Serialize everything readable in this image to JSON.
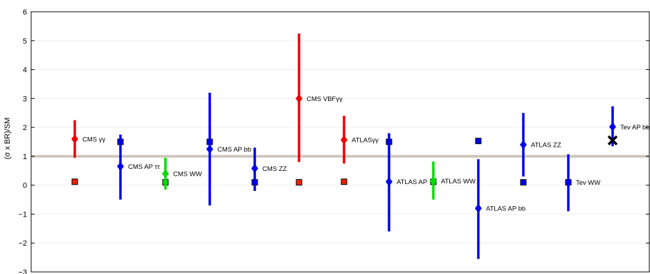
{
  "chart_data": {
    "type": "scatter",
    "title": "",
    "xlabel": "",
    "ylabel": "(σ x BR)/SM",
    "ylim": [
      -3,
      6
    ],
    "yticks": [
      "6",
      "5",
      "4",
      "3",
      "2",
      "1",
      "0",
      "−1",
      "−2",
      "−3"
    ],
    "reference_line": {
      "y": 1,
      "color": "#cfc8bf"
    },
    "grid": "horizontal",
    "points": [
      {
        "label": "CMS γγ",
        "x": 1,
        "y": 1.6,
        "low": 0.95,
        "high": 2.25,
        "color": "#ee0000",
        "marker": "diamond"
      },
      {
        "label": "CMS AP ττ",
        "x": 2,
        "y": 0.65,
        "low": -0.5,
        "high": 1.75,
        "color": "#0000ee",
        "marker": "diamond"
      },
      {
        "label": "CMS WW",
        "x": 3,
        "y": 0.4,
        "low": -0.15,
        "high": 0.95,
        "color": "#00dd00",
        "marker": "diamond"
      },
      {
        "label": "CMS AP bb",
        "x": 4,
        "y": 1.25,
        "low": -0.7,
        "high": 3.2,
        "color": "#0000ee",
        "marker": "diamond"
      },
      {
        "label": "CMS ZZ",
        "x": 5,
        "y": 0.58,
        "low": -0.2,
        "high": 1.3,
        "color": "#0000ee",
        "marker": "diamond"
      },
      {
        "label": "CMS VBFγγ",
        "x": 6,
        "y": 3.0,
        "low": 0.8,
        "high": 5.25,
        "color": "#ee0000",
        "marker": "diamond"
      },
      {
        "label": "ATLASγγ",
        "x": 7,
        "y": 1.57,
        "low": 0.75,
        "high": 2.4,
        "color": "#ee0000",
        "marker": "diamond"
      },
      {
        "label": "ATLAS AP",
        "x": 8,
        "y": 0.12,
        "low": -1.6,
        "high": 1.8,
        "color": "#0000ee",
        "marker": "diamond"
      },
      {
        "label": "ATLAS WW",
        "x": 9,
        "y": 0.15,
        "low": -0.5,
        "high": 0.82,
        "color": "#00dd00",
        "marker": "diamond"
      },
      {
        "label": "ATLAS AP bb",
        "x": 10,
        "y": -0.8,
        "low": -2.55,
        "high": 0.9,
        "color": "#0000ee",
        "marker": "diamond"
      },
      {
        "label": "ATLAS ZZ",
        "x": 11,
        "y": 1.4,
        "low": 0.3,
        "high": 2.5,
        "color": "#0000ee",
        "marker": "diamond"
      },
      {
        "label": "Tev WW",
        "x": 12,
        "y": 0.1,
        "low": -0.9,
        "high": 1.07,
        "color": "#0000ee",
        "marker": "diamond"
      },
      {
        "label": "Tev AP bb",
        "x": 13,
        "y": 2.02,
        "low": 1.35,
        "high": 2.73,
        "color": "#0000ee",
        "marker": "diamond"
      }
    ],
    "squares": [
      {
        "x": 1,
        "y": 0.12,
        "color": "#ee2200"
      },
      {
        "x": 2,
        "y": 1.5,
        "color": "#0000ee"
      },
      {
        "x": 3,
        "y": 0.1,
        "color": "#00dd00"
      },
      {
        "x": 4,
        "y": 1.5,
        "color": "#0000ee"
      },
      {
        "x": 5,
        "y": 0.1,
        "color": "#0000ee"
      },
      {
        "x": 6,
        "y": 0.1,
        "color": "#ee2200"
      },
      {
        "x": 7,
        "y": 0.12,
        "color": "#ee2200"
      },
      {
        "x": 8,
        "y": 1.5,
        "color": "#0000ee"
      },
      {
        "x": 9,
        "y": 0.12,
        "color": "#00dd00"
      },
      {
        "x": 10,
        "y": 1.53,
        "color": "#0000ee"
      },
      {
        "x": 11,
        "y": 0.1,
        "color": "#0000ee"
      },
      {
        "x": 12,
        "y": 0.1,
        "color": "#0000ee"
      }
    ],
    "crosses": [
      {
        "x": 13,
        "y": 1.55,
        "color": "#000000"
      }
    ]
  }
}
